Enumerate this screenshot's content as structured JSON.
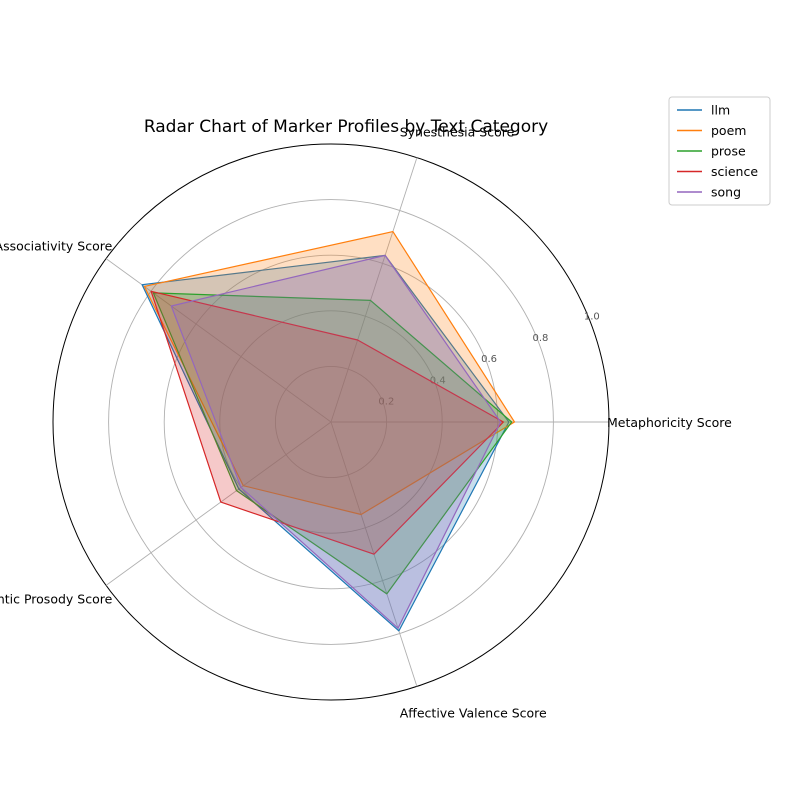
{
  "chart_data": {
    "type": "radar",
    "title": "Radar Chart of Marker Profiles by Text Category",
    "axes": [
      "Metaphoricity Score",
      "Synesthesia Score",
      "Associativity Score",
      "Semantic Prosody Score",
      "Affective Valence Score"
    ],
    "rlim": [
      0,
      1.0
    ],
    "rticks": [
      "0.2",
      "0.4",
      "0.6",
      "0.8",
      "1.0"
    ],
    "rtick_values": [
      0.2,
      0.4,
      0.6,
      0.8,
      1.0
    ],
    "grid": true,
    "legend_position": "top-right",
    "series": [
      {
        "name": "llm",
        "color": "#1f77b4",
        "values": [
          0.64,
          0.63,
          0.84,
          0.41,
          0.79
        ]
      },
      {
        "name": "poem",
        "color": "#ff7f0e",
        "values": [
          0.66,
          0.72,
          0.83,
          0.39,
          0.35
        ]
      },
      {
        "name": "prose",
        "color": "#2ca02c",
        "values": [
          0.65,
          0.46,
          0.79,
          0.42,
          0.65
        ]
      },
      {
        "name": "science",
        "color": "#d62728",
        "values": [
          0.62,
          0.31,
          0.8,
          0.49,
          0.5
        ]
      },
      {
        "name": "song",
        "color": "#9467bd",
        "values": [
          0.61,
          0.63,
          0.71,
          0.4,
          0.78
        ]
      }
    ]
  }
}
